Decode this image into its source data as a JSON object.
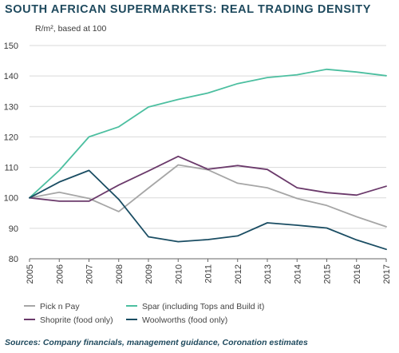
{
  "chart_data": {
    "type": "line",
    "title": "SOUTH AFRICAN SUPERMARKETS: REAL TRADING DENSITY",
    "ylabel": "R/m², based at 100",
    "xlabel": "",
    "ylim": [
      80,
      150
    ],
    "yticks": [
      80,
      90,
      100,
      110,
      120,
      130,
      140,
      150
    ],
    "x": [
      "2005",
      "2006",
      "2007",
      "2008",
      "2009",
      "2010",
      "2011",
      "2012",
      "2013",
      "2014",
      "2015",
      "2016",
      "2017"
    ],
    "grid": true,
    "legend_position": "bottom",
    "series": [
      {
        "name": "Pick n Pay",
        "color": "#a6a6a6",
        "values": [
          100,
          101.8,
          99.8,
          95.5,
          103.2,
          110.8,
          109.2,
          104.8,
          103.3,
          99.8,
          97.5,
          93.8,
          90.5
        ]
      },
      {
        "name": "Spar (including Tops and Build it)",
        "color": "#4cbfa0",
        "values": [
          100,
          109,
          120,
          123.3,
          129.8,
          132.3,
          134.4,
          137.5,
          139.5,
          140.4,
          142.2,
          141.3,
          140.1
        ]
      },
      {
        "name": "Shoprite (food only)",
        "color": "#6b3a6b",
        "values": [
          100,
          98.9,
          98.9,
          104.2,
          108.8,
          113.6,
          109.4,
          110.6,
          109.3,
          103.3,
          101.7,
          100.9,
          103.8
        ]
      },
      {
        "name": "Woolworths (food only)",
        "color": "#1a4d63",
        "values": [
          100,
          105.2,
          109,
          99.5,
          87.2,
          85.6,
          86.3,
          87.5,
          91.8,
          91,
          90.1,
          86.2,
          83.1
        ]
      }
    ]
  },
  "legend": {
    "items": [
      {
        "label": "Pick n Pay",
        "color": "#a6a6a6"
      },
      {
        "label": "Spar (including Tops and Build it)",
        "color": "#4cbfa0"
      },
      {
        "label": "Shoprite (food only)",
        "color": "#6b3a6b"
      },
      {
        "label": "Woolworths (food only)",
        "color": "#1a4d63"
      }
    ]
  },
  "footer": {
    "source": "Sources: Company financials, management guidance, Coronation estimates"
  }
}
